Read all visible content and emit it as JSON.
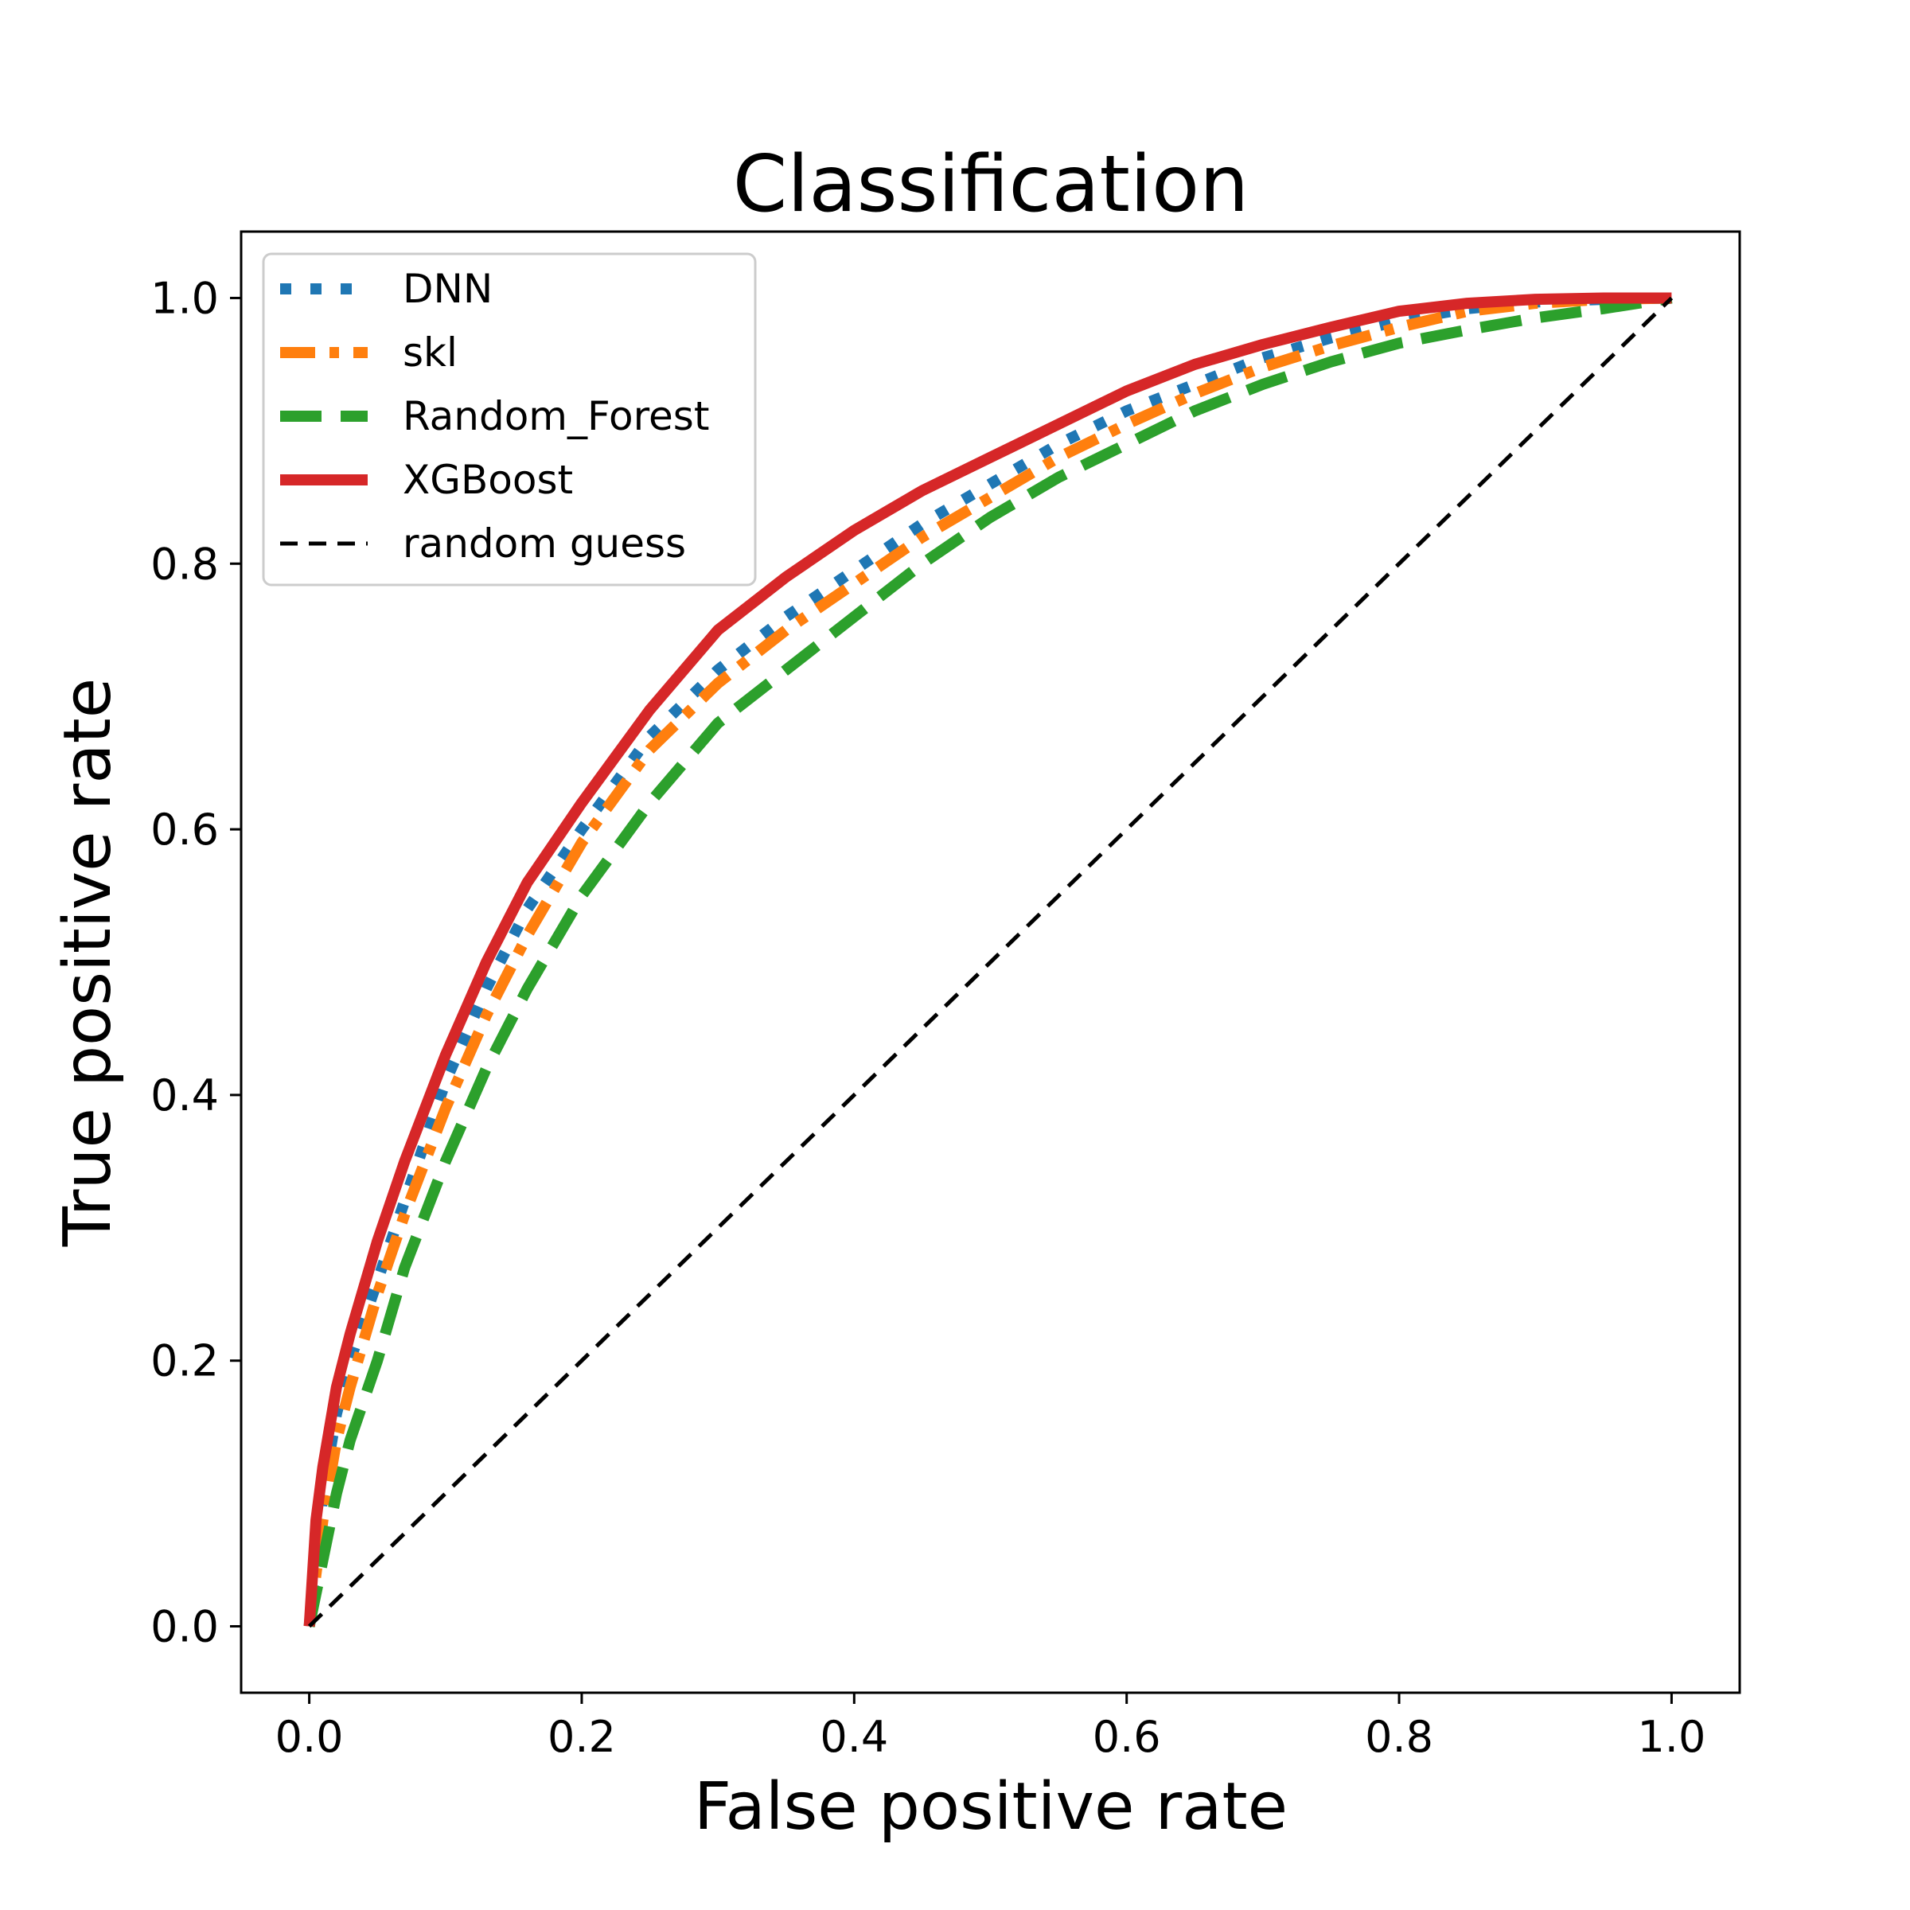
{
  "chart_data": {
    "type": "line",
    "title": "Classification",
    "xlabel": "False positive rate",
    "ylabel": "True positive rate",
    "xlim": [
      -0.05,
      1.05
    ],
    "ylim": [
      -0.05,
      1.05
    ],
    "xticks": [
      "0.0",
      "0.2",
      "0.4",
      "0.6",
      "0.8",
      "1.0"
    ],
    "yticks": [
      "0.0",
      "0.2",
      "0.4",
      "0.6",
      "0.8",
      "1.0"
    ],
    "legend_position": "upper-left",
    "grid": false,
    "series": [
      {
        "name": "DNN",
        "color": "#1f77b4",
        "style": "dotted",
        "x": [
          0,
          0.01,
          0.02,
          0.03,
          0.05,
          0.07,
          0.1,
          0.13,
          0.16,
          0.2,
          0.25,
          0.3,
          0.35,
          0.4,
          0.45,
          0.5,
          0.55,
          0.6,
          0.65,
          0.7,
          0.75,
          0.8,
          0.85,
          0.9,
          0.95,
          1.0
        ],
        "y": [
          0,
          0.1,
          0.16,
          0.2,
          0.26,
          0.32,
          0.41,
          0.48,
          0.54,
          0.6,
          0.67,
          0.72,
          0.76,
          0.795,
          0.83,
          0.86,
          0.89,
          0.915,
          0.935,
          0.955,
          0.97,
          0.983,
          0.992,
          0.997,
          0.999,
          1.0
        ]
      },
      {
        "name": "skl",
        "color": "#ff7f0e",
        "style": "dashdot",
        "x": [
          0,
          0.01,
          0.02,
          0.03,
          0.05,
          0.07,
          0.1,
          0.13,
          0.16,
          0.2,
          0.25,
          0.3,
          0.35,
          0.4,
          0.45,
          0.5,
          0.55,
          0.6,
          0.65,
          0.7,
          0.75,
          0.8,
          0.85,
          0.9,
          0.95,
          1.0
        ],
        "y": [
          0,
          0.08,
          0.14,
          0.18,
          0.25,
          0.31,
          0.39,
          0.46,
          0.52,
          0.59,
          0.66,
          0.71,
          0.75,
          0.785,
          0.82,
          0.85,
          0.88,
          0.905,
          0.928,
          0.948,
          0.964,
          0.978,
          0.99,
          0.996,
          0.999,
          1.0
        ]
      },
      {
        "name": "Random_Forest",
        "color": "#2ca02c",
        "style": "dashed",
        "x": [
          0,
          0.01,
          0.02,
          0.03,
          0.05,
          0.07,
          0.1,
          0.13,
          0.16,
          0.2,
          0.25,
          0.3,
          0.35,
          0.4,
          0.45,
          0.5,
          0.55,
          0.6,
          0.65,
          0.7,
          0.75,
          0.8,
          0.85,
          0.9,
          0.95,
          1.0
        ],
        "y": [
          0,
          0.05,
          0.1,
          0.14,
          0.2,
          0.27,
          0.35,
          0.42,
          0.48,
          0.55,
          0.62,
          0.68,
          0.72,
          0.76,
          0.8,
          0.835,
          0.865,
          0.89,
          0.915,
          0.935,
          0.952,
          0.966,
          0.976,
          0.985,
          0.992,
          1.0
        ]
      },
      {
        "name": "XGBoost",
        "color": "#d62728",
        "style": "solid",
        "x": [
          0,
          0.005,
          0.01,
          0.02,
          0.03,
          0.05,
          0.07,
          0.1,
          0.13,
          0.16,
          0.2,
          0.25,
          0.3,
          0.35,
          0.4,
          0.45,
          0.5,
          0.55,
          0.6,
          0.65,
          0.7,
          0.75,
          0.8,
          0.85,
          0.9,
          0.95,
          1.0
        ],
        "y": [
          0,
          0.08,
          0.12,
          0.18,
          0.22,
          0.29,
          0.35,
          0.43,
          0.5,
          0.56,
          0.62,
          0.69,
          0.75,
          0.79,
          0.825,
          0.855,
          0.88,
          0.905,
          0.93,
          0.95,
          0.965,
          0.978,
          0.99,
          0.996,
          0.999,
          1.0,
          1.0
        ]
      },
      {
        "name": "random guess",
        "color": "#000000",
        "style": "dashed-thin",
        "x": [
          0,
          1
        ],
        "y": [
          0,
          1
        ]
      }
    ]
  }
}
